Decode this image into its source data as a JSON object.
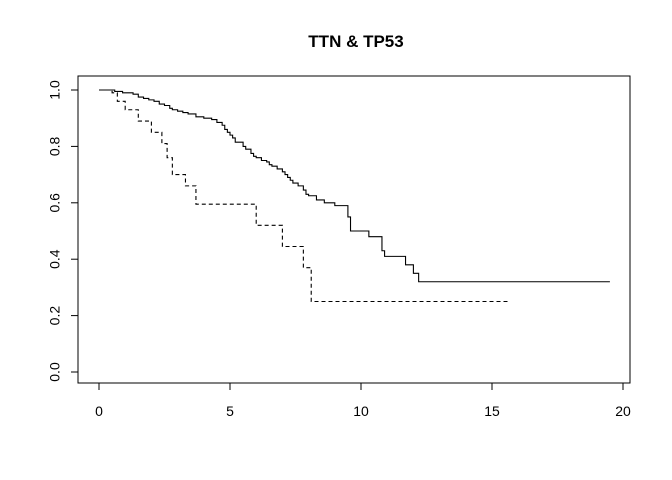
{
  "chart_data": {
    "type": "line",
    "title": "TTN & TP53",
    "xlabel": "",
    "ylabel": "",
    "xlim": [
      0,
      20
    ],
    "ylim": [
      0,
      1
    ],
    "x_ticks": [
      "0",
      "5",
      "10",
      "15",
      "20"
    ],
    "y_ticks": [
      "0.0",
      "0.2",
      "0.4",
      "0.6",
      "0.8",
      "1.0"
    ],
    "grid": false,
    "legend": "none",
    "series": [
      {
        "style": "solid",
        "step": true,
        "points": [
          [
            0,
            1.0
          ],
          [
            0.6,
            0.995
          ],
          [
            0.9,
            0.99
          ],
          [
            1.3,
            0.985
          ],
          [
            1.5,
            0.975
          ],
          [
            1.7,
            0.97
          ],
          [
            1.9,
            0.965
          ],
          [
            2.1,
            0.96
          ],
          [
            2.3,
            0.95
          ],
          [
            2.5,
            0.945
          ],
          [
            2.7,
            0.935
          ],
          [
            2.8,
            0.93
          ],
          [
            3.0,
            0.925
          ],
          [
            3.2,
            0.92
          ],
          [
            3.4,
            0.915
          ],
          [
            3.7,
            0.905
          ],
          [
            4.0,
            0.9
          ],
          [
            4.3,
            0.895
          ],
          [
            4.5,
            0.885
          ],
          [
            4.7,
            0.875
          ],
          [
            4.8,
            0.86
          ],
          [
            4.9,
            0.85
          ],
          [
            5.0,
            0.84
          ],
          [
            5.1,
            0.83
          ],
          [
            5.2,
            0.815
          ],
          [
            5.5,
            0.8
          ],
          [
            5.6,
            0.79
          ],
          [
            5.8,
            0.775
          ],
          [
            5.9,
            0.765
          ],
          [
            6.0,
            0.76
          ],
          [
            6.2,
            0.75
          ],
          [
            6.4,
            0.745
          ],
          [
            6.5,
            0.735
          ],
          [
            6.6,
            0.73
          ],
          [
            6.8,
            0.72
          ],
          [
            7.0,
            0.71
          ],
          [
            7.1,
            0.7
          ],
          [
            7.2,
            0.69
          ],
          [
            7.3,
            0.68
          ],
          [
            7.4,
            0.67
          ],
          [
            7.6,
            0.66
          ],
          [
            7.8,
            0.645
          ],
          [
            7.9,
            0.63
          ],
          [
            8.0,
            0.625
          ],
          [
            8.3,
            0.61
          ],
          [
            8.6,
            0.6
          ],
          [
            9.0,
            0.59
          ],
          [
            9.5,
            0.55
          ],
          [
            9.6,
            0.5
          ],
          [
            10.3,
            0.48
          ],
          [
            10.8,
            0.43
          ],
          [
            10.9,
            0.41
          ],
          [
            11.7,
            0.38
          ],
          [
            12.0,
            0.35
          ],
          [
            12.2,
            0.32
          ],
          [
            19.5,
            0.32
          ]
        ]
      },
      {
        "style": "dashed",
        "step": true,
        "points": [
          [
            0,
            1.0
          ],
          [
            0.5,
            0.99
          ],
          [
            0.7,
            0.96
          ],
          [
            1.0,
            0.93
          ],
          [
            1.5,
            0.89
          ],
          [
            2.0,
            0.85
          ],
          [
            2.4,
            0.81
          ],
          [
            2.6,
            0.76
          ],
          [
            2.8,
            0.7
          ],
          [
            3.3,
            0.66
          ],
          [
            3.7,
            0.595
          ],
          [
            6.0,
            0.52
          ],
          [
            7.0,
            0.445
          ],
          [
            7.8,
            0.37
          ],
          [
            8.1,
            0.25
          ],
          [
            15.6,
            0.25
          ]
        ]
      }
    ]
  }
}
